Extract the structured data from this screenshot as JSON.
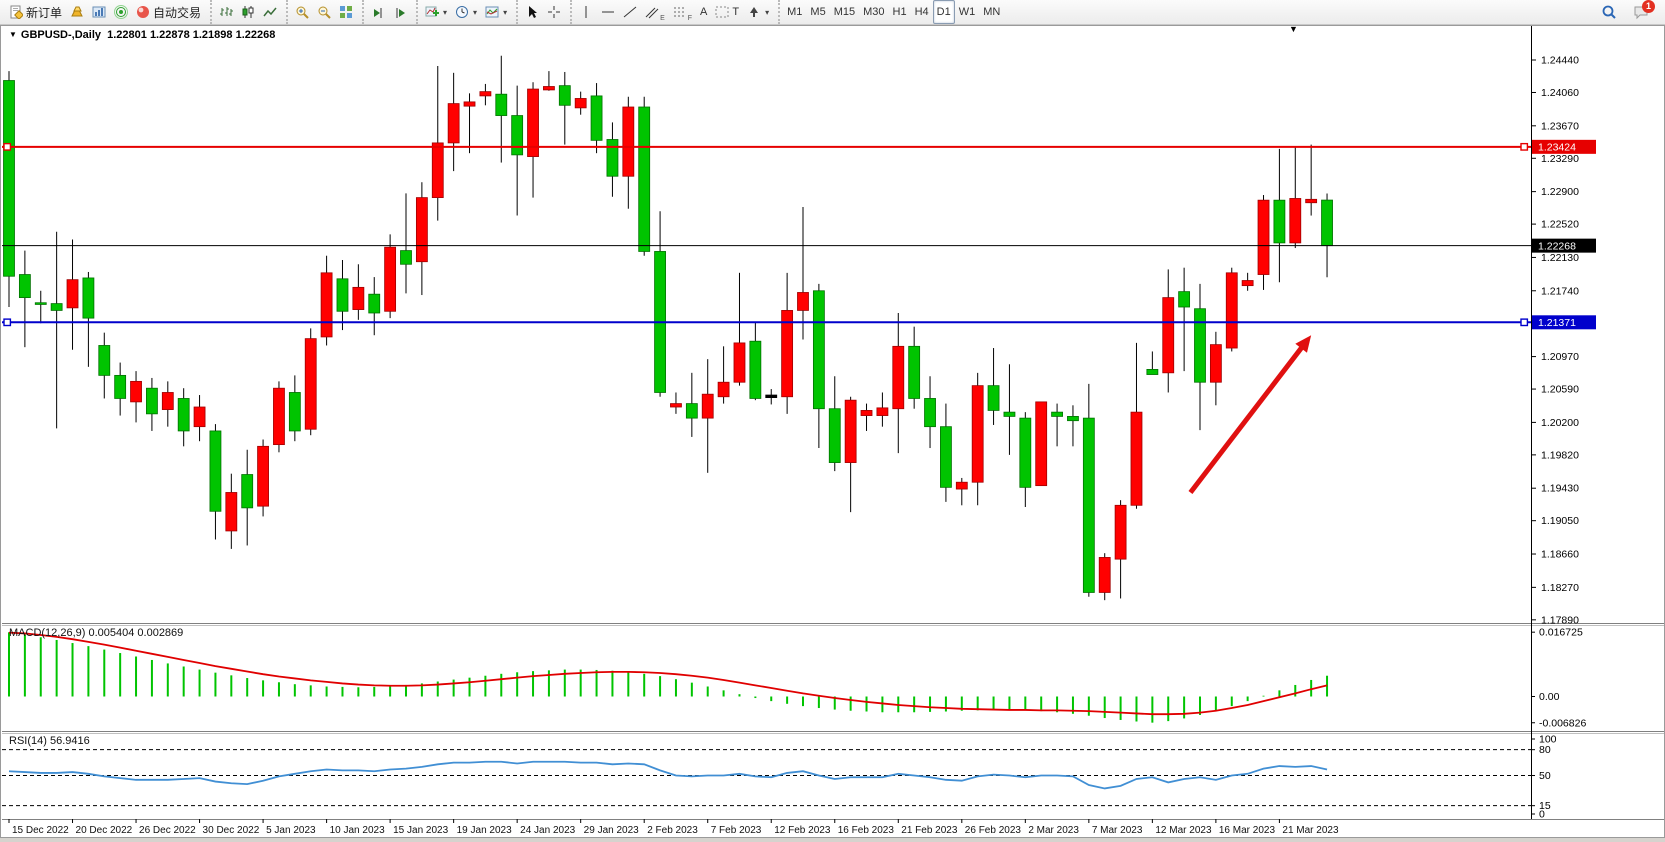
{
  "toolbar": {
    "groups": [
      {
        "name": "trade",
        "buttons": [
          {
            "name": "new-order",
            "icon": "new-order",
            "label": "新订单"
          },
          {
            "name": "gold",
            "icon": "gold"
          },
          {
            "name": "market-watch",
            "icon": "market-watch"
          },
          {
            "name": "signals",
            "icon": "signals"
          },
          {
            "name": "auto-trading",
            "icon": "auto-trading",
            "label": "自动交易"
          }
        ]
      },
      {
        "name": "chart-type",
        "buttons": [
          {
            "name": "bar-chart",
            "icon": "bar-chart"
          },
          {
            "name": "candlestick-chart",
            "icon": "candles"
          },
          {
            "name": "line-chart",
            "icon": "line-chart"
          }
        ]
      },
      {
        "name": "zoom",
        "buttons": [
          {
            "name": "zoom-in",
            "icon": "zoom-in"
          },
          {
            "name": "zoom-out",
            "icon": "zoom-out"
          },
          {
            "name": "tile-windows",
            "icon": "tiles"
          }
        ]
      },
      {
        "name": "scroll",
        "buttons": [
          {
            "name": "scroll-to-end",
            "icon": "scroll-end"
          },
          {
            "name": "chart-shift",
            "icon": "chart-shift"
          }
        ]
      },
      {
        "name": "objects",
        "buttons": [
          {
            "name": "add-indicator",
            "icon": "indicator",
            "caret": true
          },
          {
            "name": "periods",
            "icon": "clock",
            "caret": true
          },
          {
            "name": "templates",
            "icon": "template",
            "caret": true
          }
        ]
      },
      {
        "name": "pointer",
        "buttons": [
          {
            "name": "cursor",
            "icon": "cursor"
          },
          {
            "name": "crosshair",
            "icon": "crosshair"
          }
        ]
      },
      {
        "name": "draw",
        "buttons": [
          {
            "name": "vertical-line",
            "icon": "vline"
          },
          {
            "name": "horizontal-line",
            "icon": "hline"
          },
          {
            "name": "trendline",
            "icon": "tline"
          },
          {
            "name": "equidistant-channel",
            "icon": "channel",
            "sub": "E"
          },
          {
            "name": "fibonacci",
            "icon": "fibo",
            "sub": "F"
          },
          {
            "name": "text",
            "glyph": "A"
          },
          {
            "name": "text-label",
            "icon": "label",
            "glyph": "T"
          },
          {
            "name": "arrow-tools",
            "icon": "arrows",
            "caret": true
          }
        ]
      },
      {
        "name": "timeframes",
        "buttons": [
          {
            "name": "tf-M1",
            "glyph": "M1"
          },
          {
            "name": "tf-M5",
            "glyph": "M5"
          },
          {
            "name": "tf-M15",
            "glyph": "M15"
          },
          {
            "name": "tf-M30",
            "glyph": "M30"
          },
          {
            "name": "tf-H1",
            "glyph": "H1"
          },
          {
            "name": "tf-H4",
            "glyph": "H4"
          },
          {
            "name": "tf-D1",
            "glyph": "D1",
            "active": true
          },
          {
            "name": "tf-W1",
            "glyph": "W1"
          },
          {
            "name": "tf-MN",
            "glyph": "MN"
          }
        ]
      }
    ],
    "right": [
      {
        "name": "search",
        "icon": "search"
      },
      {
        "name": "notifications",
        "icon": "chat",
        "badge": "1"
      }
    ]
  },
  "chart": {
    "symbol": "GBPUSD-,Daily",
    "ohlc_text": "1.22801 1.22878 1.21898 1.22268",
    "collapse_marker": "▼",
    "price_ticks": [
      "1.24440",
      "1.24060",
      "1.23670",
      "1.23290",
      "1.22900",
      "1.22520",
      "1.22130",
      "1.21740",
      "1.20970",
      "1.20590",
      "1.20200",
      "1.19820",
      "1.19430",
      "1.19050",
      "1.18660",
      "1.18270",
      "1.17890"
    ],
    "marker_lines": {
      "resistance": {
        "price": 1.23424,
        "label": "1.23424",
        "color": "#e60000"
      },
      "bid": {
        "price": 1.22268,
        "label": "1.22268",
        "color": "#000000"
      },
      "support": {
        "price": 1.21371,
        "label": "1.21371",
        "color": "#0000cc"
      }
    },
    "dates": [
      "15 Dec 2022",
      "20 Dec 2022",
      "26 Dec 2022",
      "30 Dec 2022",
      "5 Jan 2023",
      "10 Jan 2023",
      "15 Jan 2023",
      "19 Jan 2023",
      "24 Jan 2023",
      "29 Jan 2023",
      "2 Feb 2023",
      "7 Feb 2023",
      "12 Feb 2023",
      "16 Feb 2023",
      "21 Feb 2023",
      "26 Feb 2023",
      "2 Mar 2023",
      "7 Mar 2023",
      "12 Mar 2023",
      "16 Mar 2023",
      "21 Mar 2023"
    ],
    "date_bar_indices": [
      0,
      4,
      8,
      12,
      16,
      20,
      24,
      28,
      32,
      36,
      40,
      44,
      48,
      52,
      56,
      60,
      64,
      68,
      72,
      76,
      80
    ],
    "arrow": {
      "from_bar": 74.4,
      "from_price": 1.1938,
      "to_bar": 82.0,
      "to_price": 1.2122,
      "color": "#e01010"
    }
  },
  "chart_data": {
    "type": "candlestick",
    "title": "GBPUSD- Daily",
    "convention": "red=up, green=down",
    "ylim": [
      1.1775,
      1.2466
    ],
    "candle_fields": [
      "body_top",
      "body_bottom",
      "high",
      "low",
      "color"
    ],
    "candles": [
      [
        1.242,
        1.2191,
        1.2431,
        1.2155,
        "g"
      ],
      [
        1.2193,
        1.2166,
        1.2221,
        1.2108,
        "g"
      ],
      [
        1.216,
        1.2158,
        1.2174,
        1.2136,
        "g"
      ],
      [
        1.2159,
        1.2151,
        1.2243,
        1.2013,
        "g"
      ],
      [
        1.2187,
        1.2154,
        1.2234,
        1.2105,
        "r"
      ],
      [
        1.2189,
        1.2142,
        1.2196,
        1.2085,
        "g"
      ],
      [
        1.211,
        1.2075,
        1.2125,
        1.2048,
        "g"
      ],
      [
        1.2075,
        1.2048,
        1.209,
        1.2028,
        "g"
      ],
      [
        1.2068,
        1.2044,
        1.208,
        1.202,
        "r"
      ],
      [
        1.206,
        1.203,
        1.2072,
        1.201,
        "g"
      ],
      [
        1.2055,
        1.2035,
        1.2068,
        1.2015,
        "r"
      ],
      [
        1.2048,
        1.201,
        1.206,
        1.1992,
        "g"
      ],
      [
        1.2038,
        1.2015,
        1.2052,
        1.1998,
        "r"
      ],
      [
        1.201,
        1.1916,
        1.2018,
        1.1883,
        "g"
      ],
      [
        1.1938,
        1.1893,
        1.196,
        1.1872,
        "r"
      ],
      [
        1.1959,
        1.192,
        1.1988,
        1.1876,
        "g"
      ],
      [
        1.1992,
        1.1922,
        1.2,
        1.191,
        "r"
      ],
      [
        1.206,
        1.1994,
        1.2068,
        1.1985,
        "r"
      ],
      [
        1.2055,
        1.201,
        1.2075,
        1.1998,
        "g"
      ],
      [
        1.2118,
        1.2012,
        1.213,
        1.2005,
        "r"
      ],
      [
        1.2195,
        1.212,
        1.2215,
        1.211,
        "r"
      ],
      [
        1.2188,
        1.215,
        1.221,
        1.2128,
        "g"
      ],
      [
        1.2178,
        1.2152,
        1.2205,
        1.214,
        "r"
      ],
      [
        1.217,
        1.2148,
        1.219,
        1.2122,
        "g"
      ],
      [
        1.2225,
        1.215,
        1.224,
        1.2142,
        "r"
      ],
      [
        1.2221,
        1.2205,
        1.2288,
        1.2171,
        "g"
      ],
      [
        1.2283,
        1.2208,
        1.2301,
        1.2169,
        "r"
      ],
      [
        1.2347,
        1.2283,
        1.2437,
        1.2256,
        "r"
      ],
      [
        1.2393,
        1.2347,
        1.2429,
        1.2314,
        "r"
      ],
      [
        1.2395,
        1.239,
        1.2405,
        1.2335,
        "r"
      ],
      [
        1.2407,
        1.2402,
        1.2416,
        1.2391,
        "r"
      ],
      [
        1.2404,
        1.2379,
        1.2449,
        1.2324,
        "g"
      ],
      [
        1.2379,
        1.2333,
        1.2414,
        1.2262,
        "g"
      ],
      [
        1.241,
        1.2331,
        1.2418,
        1.2283,
        "r"
      ],
      [
        1.2413,
        1.2409,
        1.2431,
        1.2408,
        "r"
      ],
      [
        1.2414,
        1.2391,
        1.243,
        1.2345,
        "g"
      ],
      [
        1.2399,
        1.2388,
        1.2407,
        1.238,
        "r"
      ],
      [
        1.2402,
        1.235,
        1.2417,
        1.2335,
        "g"
      ],
      [
        1.2351,
        1.2308,
        1.2371,
        1.2284,
        "g"
      ],
      [
        1.2389,
        1.2308,
        1.2401,
        1.227,
        "r"
      ],
      [
        1.2389,
        1.222,
        1.2401,
        1.2215,
        "g"
      ],
      [
        1.222,
        1.2055,
        1.2267,
        1.205,
        "g"
      ],
      [
        1.2042,
        1.2038,
        1.2055,
        1.203,
        "r"
      ],
      [
        1.2042,
        1.2025,
        1.2078,
        1.2003,
        "g"
      ],
      [
        1.2053,
        1.2025,
        1.2094,
        1.1961,
        "r"
      ],
      [
        1.2067,
        1.205,
        1.2109,
        1.2042,
        "r"
      ],
      [
        1.2113,
        1.2067,
        1.2195,
        1.2063,
        "r"
      ],
      [
        1.2115,
        1.2048,
        1.2138,
        1.2046,
        "g"
      ],
      [
        1.2052,
        1.2049,
        1.2059,
        1.2041,
        "k"
      ],
      [
        1.2151,
        1.205,
        1.2195,
        1.203,
        "r"
      ],
      [
        1.2172,
        1.2151,
        1.2272,
        1.2117,
        "r"
      ],
      [
        1.2174,
        1.2036,
        1.2182,
        1.199,
        "g"
      ],
      [
        1.2036,
        1.1973,
        1.2074,
        1.1963,
        "g"
      ],
      [
        1.2046,
        1.1973,
        1.205,
        1.1915,
        "r"
      ],
      [
        1.2034,
        1.2028,
        1.2042,
        1.201,
        "r"
      ],
      [
        1.2037,
        1.2028,
        1.2055,
        1.2015,
        "r"
      ],
      [
        1.2109,
        1.2036,
        1.2148,
        1.1984,
        "r"
      ],
      [
        1.2109,
        1.2048,
        1.2132,
        1.2036,
        "g"
      ],
      [
        1.2048,
        1.2015,
        1.2074,
        1.199,
        "g"
      ],
      [
        1.2015,
        1.1944,
        1.2042,
        1.1927,
        "g"
      ],
      [
        1.195,
        1.1942,
        1.1955,
        1.1923,
        "r"
      ],
      [
        1.2063,
        1.195,
        1.2078,
        1.1923,
        "r"
      ],
      [
        1.2063,
        1.2034,
        1.2107,
        1.2017,
        "g"
      ],
      [
        1.2032,
        1.2027,
        1.2088,
        1.1982,
        "g"
      ],
      [
        1.2025,
        1.1944,
        1.2032,
        1.1921,
        "g"
      ],
      [
        1.2044,
        1.1946,
        1.2044,
        1.1946,
        "r"
      ],
      [
        1.2032,
        1.2027,
        1.2042,
        1.1992,
        "g"
      ],
      [
        1.2027,
        1.2022,
        1.204,
        1.1992,
        "g"
      ],
      [
        1.2025,
        1.1821,
        1.2065,
        1.1816,
        "g"
      ],
      [
        1.1862,
        1.1821,
        1.1867,
        1.1812,
        "r"
      ],
      [
        1.1923,
        1.186,
        1.1929,
        1.1814,
        "r"
      ],
      [
        1.2032,
        1.1923,
        1.2113,
        1.1919,
        "r"
      ],
      [
        1.2082,
        1.2076,
        1.2103,
        1.2076,
        "g"
      ],
      [
        1.2166,
        1.2078,
        1.2199,
        1.2055,
        "r"
      ],
      [
        1.2173,
        1.2155,
        1.2201,
        1.208,
        "g"
      ],
      [
        1.2153,
        1.2067,
        1.2182,
        1.2011,
        "g"
      ],
      [
        1.2111,
        1.2067,
        1.2126,
        1.204,
        "r"
      ],
      [
        1.2195,
        1.2107,
        1.2201,
        1.2103,
        "r"
      ],
      [
        1.2186,
        1.218,
        1.2195,
        1.2174,
        "r"
      ],
      [
        1.228,
        1.2193,
        1.2286,
        1.2175,
        "r"
      ],
      [
        1.228,
        1.223,
        1.234,
        1.2184,
        "g"
      ],
      [
        1.2282,
        1.223,
        1.2343,
        1.2224,
        "r"
      ],
      [
        1.2281,
        1.2277,
        1.2345,
        1.2262,
        "r"
      ],
      [
        1.22801,
        1.22268,
        1.22878,
        1.21898,
        "g"
      ]
    ],
    "macd": {
      "label": "MACD(12,26,9) 0.005404 0.002869",
      "params": "12,26,9",
      "value_main": "0.005404",
      "value_signal": "0.002869",
      "axis_labels": [
        "0.016725",
        "0.00",
        "-0.006826"
      ],
      "histogram": [
        0.0167,
        0.0161,
        0.0154,
        0.0147,
        0.0139,
        0.0131,
        0.0122,
        0.0113,
        0.0104,
        0.0095,
        0.0086,
        0.0078,
        0.007,
        0.0062,
        0.0055,
        0.0048,
        0.0042,
        0.0037,
        0.0032,
        0.0029,
        0.0026,
        0.0025,
        0.0024,
        0.0025,
        0.0027,
        0.003,
        0.0034,
        0.0039,
        0.0044,
        0.0049,
        0.0054,
        0.0059,
        0.0063,
        0.0066,
        0.0068,
        0.007,
        0.007,
        0.0069,
        0.0067,
        0.0064,
        0.0059,
        0.0053,
        0.0045,
        0.0036,
        0.0026,
        0.0016,
        0.0006,
        -0.0004,
        -0.0012,
        -0.0019,
        -0.0025,
        -0.003,
        -0.0034,
        -0.0037,
        -0.0039,
        -0.0041,
        -0.0041,
        -0.0041,
        -0.004,
        -0.0039,
        -0.0037,
        -0.0036,
        -0.0035,
        -0.0035,
        -0.0036,
        -0.0038,
        -0.0041,
        -0.0045,
        -0.005,
        -0.0056,
        -0.0061,
        -0.0065,
        -0.0068,
        -0.0064,
        -0.0057,
        -0.0048,
        -0.0037,
        -0.0025,
        -0.0012,
        0.0002,
        0.0016,
        0.003,
        0.0043,
        0.0054
      ],
      "signal": [
        0.0166,
        0.0164,
        0.016,
        0.0155,
        0.0149,
        0.0142,
        0.0135,
        0.0127,
        0.0119,
        0.0111,
        0.0103,
        0.0095,
        0.0087,
        0.0079,
        0.0072,
        0.0065,
        0.0058,
        0.0052,
        0.0047,
        0.0042,
        0.0038,
        0.0034,
        0.0031,
        0.0029,
        0.0028,
        0.0028,
        0.0029,
        0.0031,
        0.0034,
        0.0037,
        0.0041,
        0.0045,
        0.0049,
        0.0053,
        0.0056,
        0.0059,
        0.0061,
        0.0063,
        0.0064,
        0.0064,
        0.0063,
        0.0061,
        0.0058,
        0.0054,
        0.0049,
        0.0043,
        0.0036,
        0.0029,
        0.0022,
        0.0015,
        0.0008,
        0.0002,
        -0.0004,
        -0.0009,
        -0.0014,
        -0.0018,
        -0.0022,
        -0.0025,
        -0.0028,
        -0.003,
        -0.0032,
        -0.0033,
        -0.0034,
        -0.0035,
        -0.0035,
        -0.0036,
        -0.0036,
        -0.0037,
        -0.0038,
        -0.004,
        -0.0042,
        -0.0044,
        -0.0046,
        -0.0046,
        -0.0045,
        -0.0042,
        -0.0037,
        -0.003,
        -0.0022,
        -0.0012,
        -0.0002,
        0.0008,
        0.0019,
        0.0029
      ]
    },
    "rsi": {
      "label": "RSI(14) 56.9416",
      "params": "14",
      "value": "56.9416",
      "axis_labels": [
        "100",
        "80",
        "50",
        "15",
        "0"
      ],
      "levels": [
        80,
        50,
        15
      ],
      "values": [
        55,
        54,
        53,
        53,
        54,
        52,
        49,
        47,
        45,
        45,
        45,
        46,
        47,
        43,
        41,
        40,
        44,
        49,
        52,
        55,
        57,
        56,
        56,
        55,
        57,
        58,
        60,
        63,
        65,
        65,
        66,
        66,
        64,
        66,
        66,
        66,
        65,
        65,
        63,
        64,
        63,
        56,
        50,
        49,
        50,
        50,
        52,
        49,
        48,
        53,
        55,
        50,
        46,
        48,
        48,
        48,
        52,
        50,
        48,
        45,
        44,
        49,
        51,
        50,
        48,
        50,
        50,
        49,
        39,
        35,
        38,
        46,
        48,
        42,
        46,
        48,
        45,
        50,
        52,
        58,
        61,
        60,
        61,
        57
      ]
    }
  },
  "colors": {
    "candle_up": "#ff0000",
    "candle_down": "#00c400",
    "macd_hist": "#00c400",
    "macd_signal": "#e00000",
    "rsi_line": "#418fd4",
    "resistance_line": "#e60000",
    "support_line": "#0000cc",
    "bid_line": "#000000"
  }
}
